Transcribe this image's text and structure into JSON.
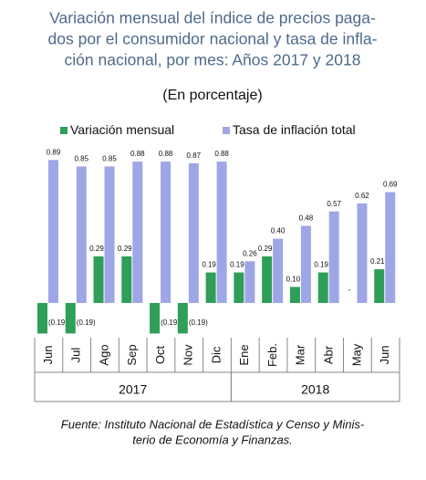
{
  "chart_data": {
    "type": "bar",
    "title": [
      "Variación mensual del índice de precios paga-",
      "dos por el consumidor nacional y tasa de infla-",
      "ción nacional, por mes: Años 2017 y 2018"
    ],
    "subtitle": "(En porcentaje)",
    "categories": [
      "Jun",
      "Jul",
      "Ago",
      "Sep",
      "Oct",
      "Nov",
      "Dic",
      "Ene",
      "Feb.",
      "Mar",
      "Abr",
      "May",
      "Jun"
    ],
    "groups": [
      {
        "label": "2017",
        "count": 7
      },
      {
        "label": "2018",
        "count": 6
      }
    ],
    "series": [
      {
        "name": "Variación mensual",
        "color": "#2f9e58",
        "values": [
          -0.19,
          -0.19,
          0.29,
          0.29,
          -0.19,
          -0.19,
          0.19,
          0.19,
          0.29,
          0.1,
          0.19,
          0,
          0.21
        ],
        "value_labels": [
          "(0.19)",
          "(0.19)",
          "0.29",
          "0.29",
          "(0.19)",
          "(0.19)",
          "0.19",
          "0.19",
          "0.29",
          "0.10",
          "0.19",
          "-",
          "0.21"
        ]
      },
      {
        "name": "Tasa de inflación total",
        "color": "#9ea6e6",
        "values": [
          0.89,
          0.85,
          0.85,
          0.88,
          0.88,
          0.87,
          0.88,
          0.26,
          0.4,
          0.48,
          0.57,
          0.62,
          0.69
        ],
        "value_labels": [
          "0.89",
          "0.85",
          "0.85",
          "0.88",
          "0.88",
          "0.87",
          "0.88",
          "0.26",
          "0.40",
          "0.48",
          "0.57",
          "0.62",
          "0.69"
        ]
      }
    ],
    "source": [
      "Fuente: Instituto Nacional de Estadística y Censo y Minis-",
      "terio de Economía y Finanzas."
    ]
  }
}
